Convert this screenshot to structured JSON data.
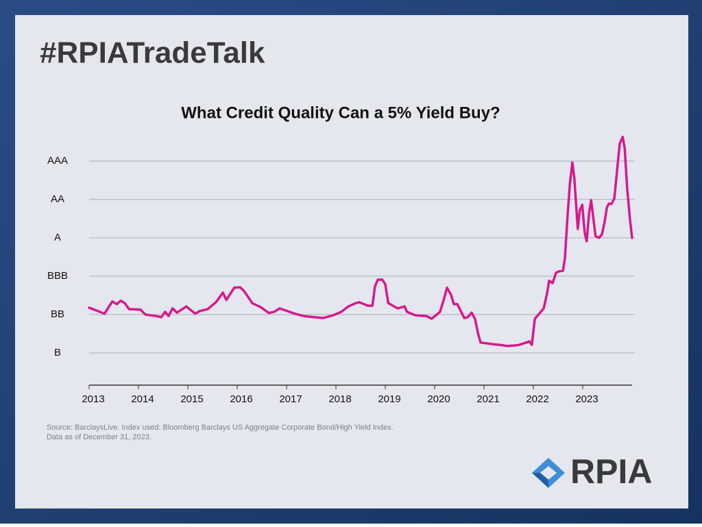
{
  "header": {
    "title": "#RPIATradeTalk",
    "logo": "RPIA"
  },
  "chart_data": {
    "type": "line",
    "title": "What Credit Quality Can a 5% Yield Buy?",
    "notes": [
      "Source: BarclaysLive. Index used: Bloomberg Barclays US Aggregate Corporate Bond/High Yield Index.",
      "Data as of December 31, 2023."
    ],
    "xlim": [
      2013,
      2024
    ],
    "xticks": [
      2013,
      2014,
      2015,
      2016,
      2017,
      2018,
      2019,
      2020,
      2021,
      2022,
      2023
    ],
    "ylim": [
      0.16,
      6.8
    ],
    "yticks": [
      {
        "value": 1,
        "label": "B"
      },
      {
        "value": 2,
        "label": "BB"
      },
      {
        "value": 3,
        "label": "BBB"
      },
      {
        "value": 4,
        "label": "A"
      },
      {
        "value": 5,
        "label": "AA"
      },
      {
        "value": 6,
        "label": "AAA"
      }
    ],
    "grid": true,
    "series": [
      {
        "color": "#d6198c",
        "x": [
          2013.0,
          2013.31,
          2013.47,
          2013.56,
          2013.64,
          2013.72,
          2013.81,
          2014.04,
          2014.14,
          2014.36,
          2014.46,
          2014.54,
          2014.61,
          2014.69,
          2014.78,
          2014.97,
          2015.15,
          2015.24,
          2015.4,
          2015.57,
          2015.71,
          2015.78,
          2015.94,
          2016.06,
          2016.14,
          2016.31,
          2016.47,
          2016.64,
          2016.75,
          2016.86,
          2017.06,
          2017.17,
          2017.35,
          2017.56,
          2017.75,
          2017.94,
          2018.11,
          2018.25,
          2018.39,
          2018.47,
          2018.65,
          2018.74,
          2018.79,
          2018.85,
          2018.94,
          2019.0,
          2019.06,
          2019.25,
          2019.39,
          2019.44,
          2019.61,
          2019.83,
          2019.94,
          2020.11,
          2020.19,
          2020.25,
          2020.33,
          2020.39,
          2020.46,
          2020.6,
          2020.67,
          2020.75,
          2020.82,
          2020.88,
          2020.93,
          2021.17,
          2021.38,
          2021.47,
          2021.68,
          2021.86,
          2021.92,
          2021.97,
          2022.03,
          2022.21,
          2022.28,
          2022.32,
          2022.39,
          2022.46,
          2022.53,
          2022.6,
          2022.64,
          2022.69,
          2022.74,
          2022.79,
          2022.83,
          2022.9,
          2022.94,
          2022.99,
          2023.04,
          2023.08,
          2023.13,
          2023.17,
          2023.21,
          2023.26,
          2023.33,
          2023.39,
          2023.44,
          2023.49,
          2023.53,
          2023.58,
          2023.64,
          2023.69,
          2023.75,
          2023.81,
          2023.85,
          2023.9,
          2023.96,
          2024.0
        ],
        "values": [
          2.18,
          2.02,
          2.34,
          2.27,
          2.36,
          2.3,
          2.14,
          2.13,
          2.0,
          1.96,
          1.93,
          2.07,
          1.96,
          2.16,
          2.05,
          2.21,
          2.02,
          2.09,
          2.14,
          2.32,
          2.57,
          2.38,
          2.7,
          2.71,
          2.61,
          2.29,
          2.2,
          2.04,
          2.07,
          2.16,
          2.07,
          2.02,
          1.96,
          1.93,
          1.91,
          1.98,
          2.07,
          2.21,
          2.29,
          2.32,
          2.23,
          2.23,
          2.73,
          2.91,
          2.91,
          2.79,
          2.3,
          2.16,
          2.21,
          2.07,
          1.98,
          1.96,
          1.89,
          2.07,
          2.41,
          2.7,
          2.52,
          2.27,
          2.27,
          1.91,
          1.93,
          2.05,
          1.88,
          1.5,
          1.27,
          1.23,
          1.2,
          1.18,
          1.2,
          1.27,
          1.3,
          1.21,
          1.89,
          2.16,
          2.57,
          2.88,
          2.82,
          3.09,
          3.13,
          3.14,
          3.48,
          4.52,
          5.41,
          5.96,
          5.55,
          4.23,
          4.71,
          4.86,
          4.13,
          3.91,
          4.66,
          4.98,
          4.57,
          4.04,
          4.0,
          4.09,
          4.39,
          4.79,
          4.89,
          4.88,
          5.02,
          5.68,
          6.45,
          6.63,
          6.34,
          5.29,
          4.45,
          4.0
        ]
      }
    ]
  }
}
